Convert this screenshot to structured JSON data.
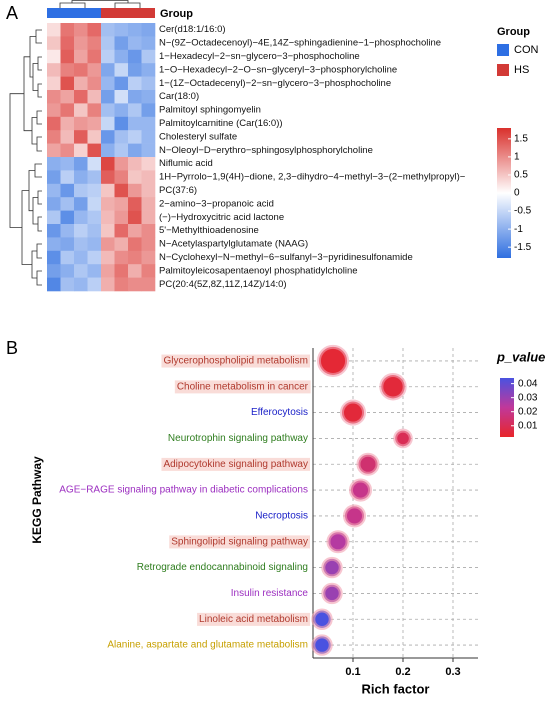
{
  "chart_data": [
    {
      "type": "heatmap",
      "panel": "A",
      "title": "Group",
      "legend_title": "Group",
      "groups": [
        {
          "name": "CON",
          "color": "#2e6fe3",
          "n": 4
        },
        {
          "name": "HS",
          "color": "#d23a36",
          "n": 4
        }
      ],
      "rows": [
        "Cer(d18:1/16:0)",
        "N−(9Z−Octadecenoyl)−4E,14Z−sphingadienine−1−phosphocholine",
        "1−Hexadecyl−2−sn−glycero−3−phosphocholine",
        "1−O−Hexadecyl−2−O−sn−glyceryl−3−phosphorylcholine",
        "1−(1Z−Octadecenyl)−2−sn−glycero−3−phosphocholine",
        "Car(18:0)",
        "Palmitoyl sphingomyelin",
        "Palmitoylcarnitine (Car(16:0))",
        "Cholesteryl sulfate",
        "N−Oleoyl−D−erythro−sphingosylphosphorylcholine",
        "Niflumic acid",
        "1H−Pyrrolo−1,9(4H)−dione, 2,3−dihydro−4−methyl−3−(2−methylpropyl)−",
        "PC(37:6)",
        "2−amino−3−propanoic acid",
        "(−)−Hydroxycitric acid lactone",
        "5'−Methylthioadenosine",
        "N−Acetylaspartylglutamate (NAAG)",
        "N−Cyclohexyl−N−methyl−6−sulfanyl−3−pyridinesulfonamide",
        "Palmitoyleicosapentaenoyl phosphatidylcholine",
        "PC(20:4(5Z,8Z,11Z,14Z)/14:0)"
      ],
      "values": [
        [
          0.3,
          1.2,
          1.0,
          1.3,
          -0.8,
          -0.9,
          -1.0,
          -1.1
        ],
        [
          0.5,
          1.3,
          0.9,
          1.1,
          -0.7,
          -1.2,
          -0.9,
          -1.0
        ],
        [
          0.2,
          1.4,
          0.8,
          1.2,
          -0.6,
          -1.0,
          -1.3,
          -0.7
        ],
        [
          0.6,
          1.1,
          1.2,
          0.9,
          -1.1,
          -0.5,
          -1.2,
          -1.0
        ],
        [
          0.4,
          1.5,
          0.7,
          1.0,
          -0.9,
          -1.3,
          -0.6,
          -0.8
        ],
        [
          1.0,
          0.8,
          1.3,
          0.6,
          -1.2,
          -0.4,
          -1.1,
          -1.0
        ],
        [
          0.9,
          1.2,
          0.5,
          1.1,
          -0.8,
          -1.0,
          -0.7,
          -1.2
        ],
        [
          1.3,
          0.7,
          0.9,
          0.8,
          -0.5,
          -1.4,
          -0.9,
          -0.9
        ],
        [
          1.1,
          0.6,
          1.4,
          0.5,
          -1.3,
          -0.8,
          -0.6,
          -0.9
        ],
        [
          0.8,
          1.0,
          0.4,
          1.5,
          -1.0,
          -0.7,
          -1.1,
          -0.9
        ],
        [
          -1.0,
          -0.9,
          -1.2,
          -0.4,
          1.6,
          0.9,
          0.6,
          0.4
        ],
        [
          -1.2,
          -0.6,
          -1.0,
          -0.8,
          1.4,
          1.1,
          0.5,
          0.6
        ],
        [
          -0.9,
          -1.3,
          -0.7,
          -0.6,
          0.5,
          1.5,
          0.9,
          0.6
        ],
        [
          -1.1,
          -0.8,
          -1.2,
          -0.5,
          0.7,
          0.8,
          1.4,
          0.7
        ],
        [
          -0.7,
          -1.4,
          -0.9,
          -0.7,
          0.6,
          0.9,
          1.5,
          0.7
        ],
        [
          -1.3,
          -0.9,
          -0.6,
          -0.8,
          0.5,
          1.3,
          0.8,
          1.0
        ],
        [
          -1.0,
          -1.1,
          -0.8,
          -0.9,
          0.9,
          0.7,
          1.2,
          1.0
        ],
        [
          -1.4,
          -0.7,
          -0.9,
          -0.6,
          0.6,
          1.0,
          1.1,
          0.9
        ],
        [
          -1.2,
          -1.0,
          -0.7,
          -0.9,
          0.8,
          1.2,
          0.7,
          1.1
        ],
        [
          -1.5,
          -0.8,
          -0.9,
          -0.6,
          0.7,
          1.1,
          1.0,
          1.0
        ]
      ],
      "clim": [
        -1.8,
        1.8
      ],
      "cticks": [
        1.5,
        1,
        0.5,
        0,
        -0.5,
        -1,
        -1.5
      ],
      "colors": [
        "#2f6fe0",
        "#ffffff",
        "#d9302c"
      ]
    },
    {
      "type": "bubble",
      "panel": "B",
      "xlabel": "Rich factor",
      "ylabel": "KEGG Pathway",
      "legend_title": "p_value",
      "categories": [
        "Glycerophospholipid metabolism",
        "Choline metabolism in cancer",
        "Efferocytosis",
        "Neurotrophin signaling pathway",
        "Adipocytokine signaling pathway",
        "AGE−RAGE signaling pathway in diabetic complications",
        "Necroptosis",
        "Sphingolipid signaling pathway",
        "Retrograde endocannabinoid signaling",
        "Insulin resistance",
        "Linoleic acid metabolism",
        "Alanine, aspartate and glutamate metabolism"
      ],
      "label_colors": [
        "#b03a2e",
        "#b03a2e",
        "#1c22c8",
        "#2e7d1e",
        "#b03a2e",
        "#9c2fc0",
        "#1c22c8",
        "#b03a2e",
        "#2e7d1e",
        "#9c2fc0",
        "#b03a2e",
        "#c7a000"
      ],
      "label_backgrounds": [
        "#f9dcd8",
        "#f9dcd8",
        null,
        null,
        "#f9dcd8",
        null,
        null,
        "#f9dcd8",
        null,
        null,
        "#f9dcd8",
        null
      ],
      "x": [
        0.06,
        0.18,
        0.1,
        0.2,
        0.13,
        0.115,
        0.103,
        0.07,
        0.058,
        0.058,
        0.038,
        0.038
      ],
      "p_values": [
        0.004,
        0.005,
        0.005,
        0.01,
        0.015,
        0.02,
        0.02,
        0.025,
        0.03,
        0.03,
        0.045,
        0.045
      ],
      "sizes": [
        13,
        9,
        8,
        4,
        6,
        6,
        6,
        6,
        5,
        5,
        5,
        5
      ],
      "xlim": [
        0.02,
        0.35
      ],
      "xticks": [
        0.1,
        0.2,
        0.3
      ],
      "grid": true,
      "clim": [
        0.002,
        0.044
      ],
      "cticks": [
        0.04,
        0.03,
        0.02,
        0.01
      ],
      "colors": [
        "#e8262a",
        "#c0389a",
        "#4a52e0"
      ]
    }
  ]
}
